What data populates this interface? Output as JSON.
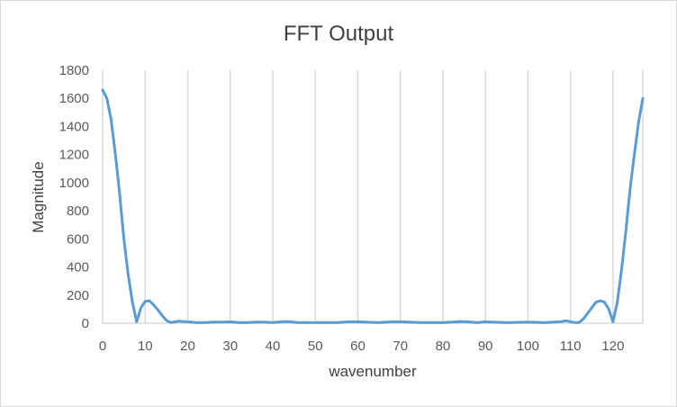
{
  "chart_data": {
    "type": "line",
    "title": "FFT Output",
    "xlabel": "wavenumber",
    "ylabel": "Magnitude",
    "xlim": [
      0,
      127
    ],
    "ylim": [
      0,
      1800
    ],
    "x_ticks": [
      0,
      10,
      20,
      30,
      40,
      50,
      60,
      70,
      80,
      90,
      100,
      110,
      120
    ],
    "y_ticks": [
      0,
      200,
      400,
      600,
      800,
      1000,
      1200,
      1400,
      1600,
      1800
    ],
    "x_tick_labels": [
      "0",
      "10",
      "20",
      "30",
      "40",
      "50",
      "60",
      "70",
      "80",
      "90",
      "100",
      "110",
      "120"
    ],
    "y_tick_labels": [
      "0",
      "200",
      "400",
      "600",
      "800",
      "1000",
      "1200",
      "1400",
      "1600",
      "1800"
    ],
    "grid": {
      "vertical": true,
      "horizontal": false
    },
    "legend": "none",
    "series": [
      {
        "color": "#5b9bd5",
        "x": [
          0,
          1,
          2,
          3,
          4,
          5,
          6,
          7,
          8,
          9,
          10,
          11,
          12,
          13,
          14,
          15,
          16,
          17,
          18,
          19,
          20,
          22,
          24,
          26,
          28,
          30,
          32,
          34,
          36,
          38,
          40,
          42,
          43,
          44,
          46,
          50,
          55,
          58,
          60,
          62,
          65,
          68,
          70,
          75,
          80,
          82,
          84,
          86,
          88,
          90,
          92,
          95,
          100,
          104,
          106,
          108,
          109,
          110,
          111,
          112,
          113,
          114,
          115,
          116,
          117,
          118,
          119,
          120,
          121,
          122,
          123,
          124,
          125,
          126,
          127
        ],
        "y": [
          1660,
          1600,
          1450,
          1200,
          920,
          600,
          350,
          150,
          10,
          110,
          155,
          160,
          130,
          95,
          55,
          20,
          5,
          10,
          15,
          12,
          10,
          5,
          5,
          8,
          8,
          10,
          5,
          5,
          8,
          8,
          5,
          10,
          12,
          10,
          5,
          5,
          5,
          10,
          10,
          8,
          5,
          10,
          10,
          5,
          5,
          8,
          12,
          10,
          5,
          10,
          8,
          5,
          8,
          5,
          8,
          12,
          18,
          10,
          5,
          5,
          30,
          70,
          110,
          150,
          160,
          150,
          100,
          10,
          150,
          380,
          650,
          950,
          1200,
          1430,
          1600
        ]
      }
    ]
  },
  "colors": {
    "line": "#5b9bd5",
    "grid": "#d9d9d9",
    "text": "#595959"
  }
}
